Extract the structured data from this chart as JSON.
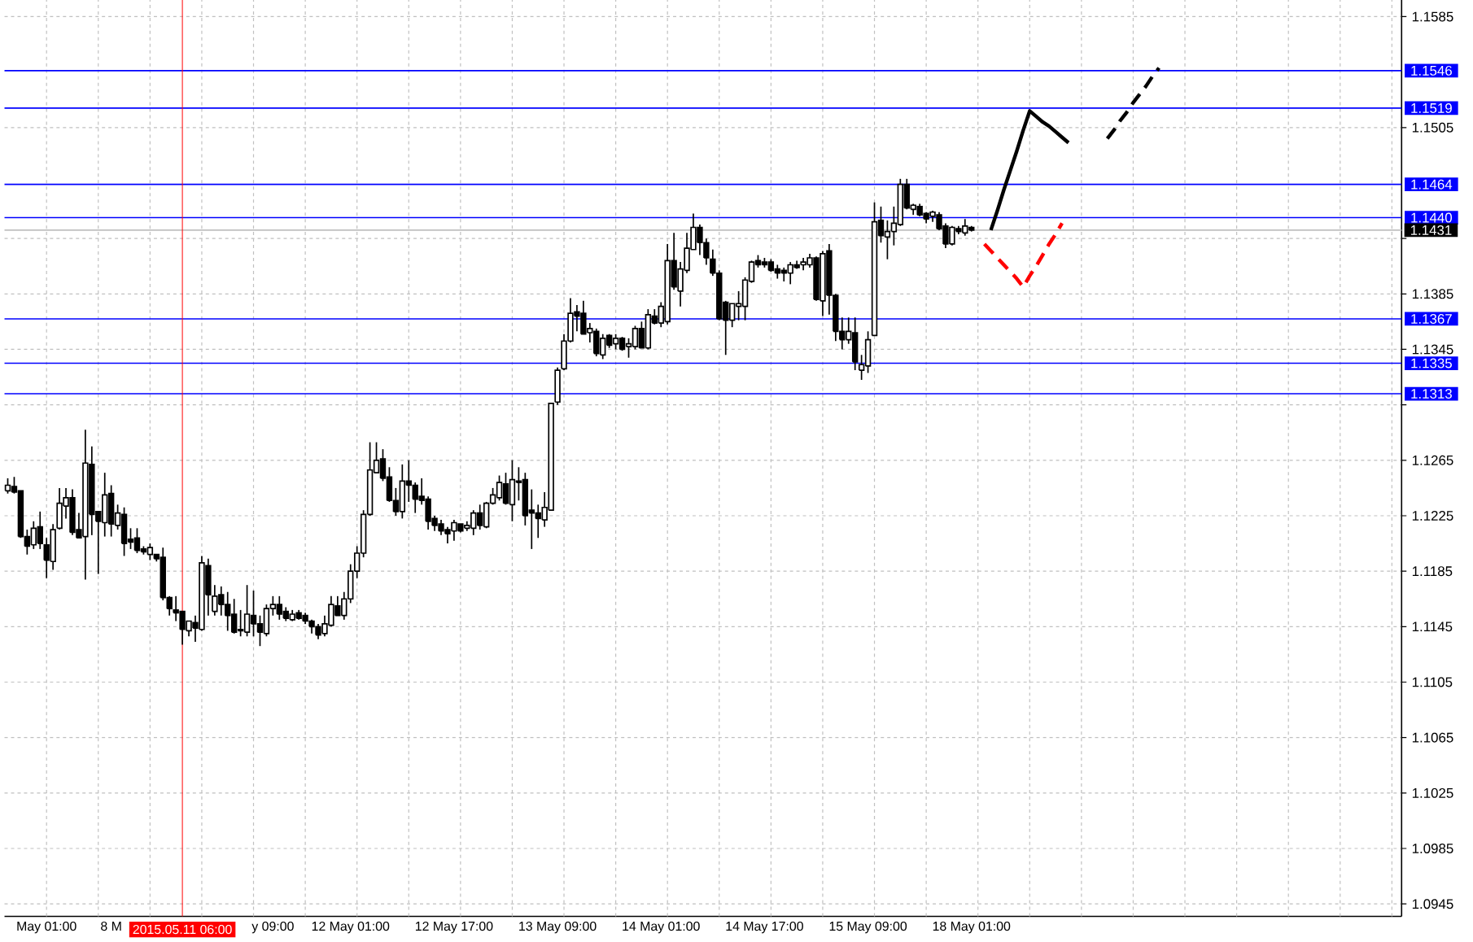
{
  "chart_data": {
    "type": "candlestick",
    "color": "#000000",
    "categories": [
      null,
      null,
      null,
      null,
      null,
      null,
      "May 01:00",
      null,
      null,
      null,
      null,
      null,
      null,
      null,
      null,
      null,
      "8 M",
      null,
      null,
      null,
      null,
      null,
      null,
      null,
      null,
      null,
      null,
      "2015.05.11 06:00",
      null,
      null,
      null,
      null,
      null,
      null,
      null,
      null,
      null,
      null,
      null,
      null,
      null,
      "y 09:00",
      null,
      null,
      null,
      null,
      null,
      null,
      null,
      null,
      null,
      null,
      null,
      "12 May 01:00",
      null,
      null,
      null,
      null,
      null,
      null,
      null,
      null,
      null,
      null,
      null,
      null,
      null,
      null,
      null,
      "12 May 17:00",
      null,
      null,
      null,
      null,
      null,
      null,
      null,
      null,
      null,
      null,
      null,
      null,
      null,
      null,
      null,
      "13 May 09:00",
      null,
      null,
      null,
      null,
      null,
      null,
      null,
      null,
      null,
      null,
      null,
      null,
      null,
      null,
      null,
      "14 May 01:00",
      null,
      null,
      null,
      null,
      null,
      null,
      null,
      null,
      null,
      null,
      null,
      null,
      null,
      null,
      null,
      "14 May 17:00",
      null,
      null,
      null,
      null,
      null,
      null,
      null,
      null,
      null,
      null,
      null,
      null,
      null,
      null,
      null,
      "15 May 09:00",
      null,
      null,
      null,
      null,
      null,
      null,
      null,
      null,
      null,
      null,
      null,
      null,
      null,
      null,
      null,
      "18 May 01:00",
      null,
      null,
      null,
      null,
      null,
      null,
      null,
      null,
      null,
      null,
      null,
      null,
      null,
      null,
      null,
      null,
      null,
      null,
      null,
      null,
      null,
      null,
      null,
      null,
      null,
      null,
      null,
      null,
      null,
      null,
      null,
      null,
      null,
      null,
      null,
      null,
      null,
      null,
      null,
      null,
      null,
      null,
      null,
      null,
      null,
      null,
      null,
      null,
      null,
      null,
      null,
      null,
      null,
      null,
      null,
      null,
      null,
      null,
      null,
      null,
      null,
      null,
      null,
      null,
      null,
      null
    ],
    "ohlc": [
      [
        1.1243,
        1.1252,
        1.1241,
        1.1247
      ],
      [
        1.1246,
        1.1253,
        1.1241,
        1.1242
      ],
      [
        1.1243,
        1.1243,
        1.1209,
        1.121
      ],
      [
        1.121,
        1.1215,
        1.1197,
        1.1203
      ],
      [
        1.1204,
        1.1221,
        1.1201,
        1.1216
      ],
      [
        1.1217,
        1.1228,
        1.1201,
        1.1205
      ],
      [
        1.1204,
        1.1209,
        1.118,
        1.1193
      ],
      [
        1.1192,
        1.1219,
        1.1186,
        1.1215
      ],
      [
        1.1216,
        1.1245,
        1.1215,
        1.1234
      ],
      [
        1.1232,
        1.1245,
        1.1223,
        1.1238
      ],
      [
        1.1238,
        1.1244,
        1.1211,
        1.1213
      ],
      [
        1.1215,
        1.1227,
        1.1209,
        1.1209
      ],
      [
        1.121,
        1.1287,
        1.1179,
        1.1263
      ],
      [
        1.1262,
        1.1275,
        1.1211,
        1.1226
      ],
      [
        1.1228,
        1.1228,
        1.1183,
        1.1221
      ],
      [
        1.122,
        1.1256,
        1.121,
        1.124
      ],
      [
        1.1241,
        1.1247,
        1.121,
        1.1219
      ],
      [
        1.1218,
        1.1233,
        1.1215,
        1.1227
      ],
      [
        1.1226,
        1.1231,
        1.1196,
        1.1205
      ],
      [
        1.1208,
        1.1216,
        1.1201,
        1.1206
      ],
      [
        1.1209,
        1.1216,
        1.1198,
        1.12
      ],
      [
        1.1201,
        1.1203,
        1.1197,
        1.1199
      ],
      [
        1.1197,
        1.1205,
        1.1193,
        1.1202
      ],
      [
        1.1197,
        1.1197,
        1.1192,
        1.1194
      ],
      [
        1.1195,
        1.1202,
        1.1164,
        1.1166
      ],
      [
        1.1166,
        1.1167,
        1.1153,
        1.1158
      ],
      [
        1.1157,
        1.1167,
        1.1149,
        1.1155
      ],
      [
        1.1156,
        1.1156,
        1.1132,
        1.1143
      ],
      [
        1.1142,
        1.1149,
        1.1138,
        1.1149
      ],
      [
        1.1148,
        1.1153,
        1.1134,
        1.1144
      ],
      [
        1.1143,
        1.1196,
        1.1142,
        1.1191
      ],
      [
        1.1189,
        1.1194,
        1.1153,
        1.1168
      ],
      [
        1.1156,
        1.1175,
        1.1153,
        1.1167
      ],
      [
        1.1168,
        1.1174,
        1.1153,
        1.1161
      ],
      [
        1.1161,
        1.117,
        1.1142,
        1.1153
      ],
      [
        1.1154,
        1.1165,
        1.114,
        1.1141
      ],
      [
        1.1143,
        1.1157,
        1.1138,
        1.1142
      ],
      [
        1.1141,
        1.1175,
        1.1138,
        1.1154
      ],
      [
        1.1153,
        1.1171,
        1.1138,
        1.1147
      ],
      [
        1.1147,
        1.1153,
        1.1131,
        1.1141
      ],
      [
        1.114,
        1.1161,
        1.1138,
        1.1158
      ],
      [
        1.1158,
        1.1167,
        1.1153,
        1.1161
      ],
      [
        1.1161,
        1.1167,
        1.115,
        1.1154
      ],
      [
        1.1156,
        1.1159,
        1.1149,
        1.1151
      ],
      [
        1.115,
        1.1157,
        1.1149,
        1.1154
      ],
      [
        1.1155,
        1.1157,
        1.115,
        1.1151
      ],
      [
        1.1153,
        1.1155,
        1.1147,
        1.1149
      ],
      [
        1.1149,
        1.115,
        1.114,
        1.1145
      ],
      [
        1.1145,
        1.1147,
        1.1136,
        1.1139
      ],
      [
        1.114,
        1.1153,
        1.1138,
        1.1147
      ],
      [
        1.1146,
        1.1167,
        1.1145,
        1.1161
      ],
      [
        1.116,
        1.1167,
        1.1153,
        1.1153
      ],
      [
        1.1153,
        1.117,
        1.115,
        1.1165
      ],
      [
        1.1165,
        1.119,
        1.1162,
        1.1185
      ],
      [
        1.1185,
        1.1203,
        1.118,
        1.1198
      ],
      [
        1.1198,
        1.1229,
        1.1195,
        1.1226
      ],
      [
        1.1226,
        1.1278,
        1.1225,
        1.1258
      ],
      [
        1.1256,
        1.1278,
        1.1256,
        1.1265
      ],
      [
        1.1266,
        1.1273,
        1.125,
        1.1252
      ],
      [
        1.1253,
        1.126,
        1.1235,
        1.1236
      ],
      [
        1.1236,
        1.1245,
        1.1225,
        1.1228
      ],
      [
        1.1228,
        1.1262,
        1.1223,
        1.125
      ],
      [
        1.125,
        1.1265,
        1.1235,
        1.1247
      ],
      [
        1.1247,
        1.1249,
        1.1227,
        1.1237
      ],
      [
        1.1239,
        1.1252,
        1.1233,
        1.1236
      ],
      [
        1.1237,
        1.1239,
        1.1215,
        1.1221
      ],
      [
        1.1223,
        1.1225,
        1.1214,
        1.1218
      ],
      [
        1.1219,
        1.1222,
        1.1211,
        1.1214
      ],
      [
        1.1215,
        1.1217,
        1.1205,
        1.1212
      ],
      [
        1.1214,
        1.1222,
        1.1207,
        1.122
      ],
      [
        1.1219,
        1.1219,
        1.1213,
        1.1214
      ],
      [
        1.1216,
        1.1221,
        1.1214,
        1.1218
      ],
      [
        1.1216,
        1.1229,
        1.1211,
        1.1227
      ],
      [
        1.1227,
        1.1233,
        1.1215,
        1.1218
      ],
      [
        1.1217,
        1.1235,
        1.1216,
        1.1234
      ],
      [
        1.1234,
        1.1245,
        1.1233,
        1.124
      ],
      [
        1.1238,
        1.1254,
        1.1236,
        1.1249
      ],
      [
        1.1248,
        1.1256,
        1.1233,
        1.1234
      ],
      [
        1.1233,
        1.1265,
        1.1221,
        1.1251
      ],
      [
        1.1249,
        1.126,
        1.1236,
        1.125
      ],
      [
        1.1251,
        1.1256,
        1.1218,
        1.1225
      ],
      [
        1.1229,
        1.1244,
        1.1201,
        1.1227
      ],
      [
        1.1227,
        1.1233,
        1.1209,
        1.1223
      ],
      [
        1.1222,
        1.1242,
        1.1217,
        1.1231
      ],
      [
        1.1229,
        1.1306,
        1.1229,
        1.1306
      ],
      [
        1.1307,
        1.1332,
        1.1305,
        1.133
      ],
      [
        1.1331,
        1.1356,
        1.133,
        1.1351
      ],
      [
        1.1351,
        1.1382,
        1.135,
        1.1371
      ],
      [
        1.1372,
        1.1377,
        1.1358,
        1.1369
      ],
      [
        1.1371,
        1.138,
        1.1356,
        1.1356
      ],
      [
        1.1357,
        1.1364,
        1.135,
        1.136
      ],
      [
        1.1358,
        1.136,
        1.134,
        1.1342
      ],
      [
        1.1341,
        1.1356,
        1.1338,
        1.1353
      ],
      [
        1.1355,
        1.1356,
        1.1346,
        1.1348
      ],
      [
        1.1349,
        1.1356,
        1.1345,
        1.1353
      ],
      [
        1.1353,
        1.1354,
        1.1344,
        1.1345
      ],
      [
        1.1347,
        1.1353,
        1.1339,
        1.1349
      ],
      [
        1.1347,
        1.1362,
        1.1345,
        1.136
      ],
      [
        1.136,
        1.1365,
        1.1346,
        1.1346
      ],
      [
        1.1346,
        1.1374,
        1.1345,
        1.137
      ],
      [
        1.1369,
        1.1374,
        1.1363,
        1.1364
      ],
      [
        1.1364,
        1.1379,
        1.1361,
        1.1376
      ],
      [
        1.1365,
        1.1421,
        1.1363,
        1.1409
      ],
      [
        1.1409,
        1.1429,
        1.1388,
        1.139
      ],
      [
        1.1387,
        1.1408,
        1.1376,
        1.1403
      ],
      [
        1.1402,
        1.1429,
        1.14,
        1.1418
      ],
      [
        1.1417,
        1.1443,
        1.1417,
        1.1433
      ],
      [
        1.1433,
        1.1435,
        1.1413,
        1.1422
      ],
      [
        1.1422,
        1.1425,
        1.1406,
        1.1411
      ],
      [
        1.141,
        1.1417,
        1.1398,
        1.14
      ],
      [
        1.14,
        1.1402,
        1.1366,
        1.1367
      ],
      [
        1.1379,
        1.138,
        1.1341,
        1.1366
      ],
      [
        1.1366,
        1.1378,
        1.1361,
        1.1378
      ],
      [
        1.1376,
        1.1387,
        1.1366,
        1.1378
      ],
      [
        1.1376,
        1.1397,
        1.1366,
        1.1395
      ],
      [
        1.1394,
        1.1409,
        1.1393,
        1.1408
      ],
      [
        1.1409,
        1.1413,
        1.1404,
        1.1406
      ],
      [
        1.1408,
        1.1411,
        1.1404,
        1.1406
      ],
      [
        1.1408,
        1.141,
        1.1401,
        1.1402
      ],
      [
        1.1403,
        1.1406,
        1.1396,
        1.14
      ],
      [
        1.1402,
        1.1404,
        1.1394,
        1.14
      ],
      [
        1.14,
        1.1408,
        1.1392,
        1.1406
      ],
      [
        1.1406,
        1.1409,
        1.1403,
        1.1404
      ],
      [
        1.1406,
        1.1411,
        1.1402,
        1.1408
      ],
      [
        1.1406,
        1.1414,
        1.1404,
        1.1411
      ],
      [
        1.1411,
        1.1412,
        1.138,
        1.1381
      ],
      [
        1.138,
        1.1416,
        1.1369,
        1.1414
      ],
      [
        1.1416,
        1.1421,
        1.137,
        1.1384
      ],
      [
        1.1384,
        1.1385,
        1.1351,
        1.1358
      ],
      [
        1.1358,
        1.1368,
        1.1345,
        1.1352
      ],
      [
        1.1352,
        1.1368,
        1.1349,
        1.1358
      ],
      [
        1.1357,
        1.1368,
        1.133,
        1.1336
      ],
      [
        1.133,
        1.1341,
        1.1323,
        1.1334
      ],
      [
        1.1333,
        1.1358,
        1.1328,
        1.1352
      ],
      [
        1.1355,
        1.1451,
        1.1355,
        1.1437
      ],
      [
        1.1438,
        1.1448,
        1.1422,
        1.1427
      ],
      [
        1.1426,
        1.1438,
        1.141,
        1.143
      ],
      [
        1.143,
        1.1448,
        1.142,
        1.1436
      ],
      [
        1.1435,
        1.1468,
        1.1434,
        1.1464
      ],
      [
        1.1464,
        1.1468,
        1.1446,
        1.1447
      ],
      [
        1.1446,
        1.145,
        1.1442,
        1.1449
      ],
      [
        1.1448,
        1.145,
        1.1441,
        1.1442
      ],
      [
        1.1443,
        1.1444,
        1.1436,
        1.1439
      ],
      [
        1.1441,
        1.1445,
        1.1437,
        1.1444
      ],
      [
        1.1442,
        1.1444,
        1.1431,
        1.1432
      ],
      [
        1.1434,
        1.1436,
        1.1418,
        1.1421
      ],
      [
        1.1421,
        1.1434,
        1.142,
        1.1433
      ],
      [
        1.1432,
        1.1434,
        1.1428,
        1.143
      ],
      [
        1.1429,
        1.1439,
        1.1427,
        1.1434
      ],
      [
        1.1433,
        1.1434,
        1.143,
        1.1431
      ],
      null,
      null,
      null,
      null,
      null,
      null,
      null,
      null,
      null,
      null,
      null,
      null,
      null,
      null,
      null,
      null,
      null,
      null,
      null,
      null,
      null,
      null,
      null,
      null,
      null,
      null,
      null,
      null,
      null,
      null,
      null,
      null,
      null,
      null,
      null,
      null,
      null,
      null,
      null,
      null,
      null,
      null,
      null,
      null,
      null,
      null,
      null,
      null,
      null,
      null,
      null,
      null,
      null,
      null,
      null,
      null,
      null,
      null,
      null,
      null,
      null,
      null,
      null,
      null,
      null,
      null
    ],
    "ylim": [
      1.0936,
      1.1597
    ],
    "yticks": [
      1.0945,
      1.0985,
      1.1025,
      1.1065,
      1.1105,
      1.1145,
      1.1185,
      1.1225,
      1.1265,
      {
        "value": 1.1305,
        "label": null
      },
      1.1345,
      1.1385,
      {
        "value": 1.1425,
        "label": null
      },
      1.1505,
      1.1585
    ],
    "grid": true,
    "ref_lines": [
      {
        "axis": "y",
        "value": 1.1546,
        "label": "1.1546",
        "color": "#0000ff"
      },
      {
        "axis": "y",
        "value": 1.1519,
        "label": "1.1519",
        "color": "#0000ff"
      },
      {
        "axis": "y",
        "value": 1.1464,
        "label": "1.1464",
        "color": "#0000ff"
      },
      {
        "axis": "y",
        "value": 1.144,
        "label": "1.1440",
        "color": "#0000ff"
      },
      {
        "axis": "y",
        "value": 1.1431,
        "color": "#c0c0c0"
      },
      {
        "axis": "y",
        "value": 1.1367,
        "label": "1.1367",
        "color": "#0000ff"
      },
      {
        "axis": "y",
        "value": 1.1335,
        "label": "1.1335",
        "color": "#0000ff"
      },
      {
        "axis": "y",
        "value": 1.1313,
        "label": "1.1313",
        "color": "#0000ff"
      },
      {
        "axis": "x",
        "value": "2015.05.11 06:00",
        "color": "#ff0000"
      }
    ],
    "annotations": [
      "1.1431"
    ],
    "series": [
      {
        "type": "line",
        "color": "#000000",
        "line_style": "solid",
        "values": [
          null,
          null,
          null,
          null,
          null,
          null,
          null,
          null,
          null,
          null,
          null,
          null,
          null,
          null,
          null,
          null,
          null,
          null,
          null,
          null,
          null,
          null,
          null,
          null,
          null,
          null,
          null,
          null,
          null,
          null,
          null,
          null,
          null,
          null,
          null,
          null,
          null,
          null,
          null,
          null,
          null,
          null,
          null,
          null,
          null,
          null,
          null,
          null,
          null,
          null,
          null,
          null,
          null,
          null,
          null,
          null,
          null,
          null,
          null,
          null,
          null,
          null,
          null,
          null,
          null,
          null,
          null,
          null,
          null,
          null,
          null,
          null,
          null,
          null,
          null,
          null,
          null,
          null,
          null,
          null,
          null,
          null,
          null,
          null,
          null,
          null,
          null,
          null,
          null,
          null,
          null,
          null,
          null,
          null,
          null,
          null,
          null,
          null,
          null,
          null,
          null,
          null,
          null,
          null,
          null,
          null,
          null,
          null,
          null,
          null,
          null,
          null,
          null,
          null,
          null,
          null,
          null,
          null,
          null,
          null,
          null,
          null,
          null,
          null,
          null,
          null,
          null,
          null,
          null,
          null,
          null,
          null,
          null,
          null,
          null,
          null,
          null,
          null,
          null,
          null,
          null,
          null,
          null,
          null,
          null,
          null,
          null,
          null,
          null,
          null,
          null,
          null,
          1.1431,
          1.1445,
          1.146,
          1.1474,
          1.1488,
          1.1503,
          1.1517,
          1.1513,
          1.1509,
          1.1506,
          1.1502,
          1.1498,
          1.1494,
          null,
          null,
          null,
          null,
          null,
          null,
          null,
          null,
          null,
          null,
          null,
          null,
          null,
          null,
          null,
          null,
          null,
          null,
          null,
          null,
          null,
          null,
          null,
          null,
          null,
          null,
          null,
          null,
          null,
          null,
          null,
          null,
          null,
          null,
          null,
          null,
          null,
          null,
          null,
          null,
          null,
          null,
          null,
          null,
          null,
          null,
          null,
          null,
          null,
          null,
          null
        ]
      },
      {
        "type": "line",
        "color": "#000000",
        "line_style": "dashed",
        "values": [
          null,
          null,
          null,
          null,
          null,
          null,
          null,
          null,
          null,
          null,
          null,
          null,
          null,
          null,
          null,
          null,
          null,
          null,
          null,
          null,
          null,
          null,
          null,
          null,
          null,
          null,
          null,
          null,
          null,
          null,
          null,
          null,
          null,
          null,
          null,
          null,
          null,
          null,
          null,
          null,
          null,
          null,
          null,
          null,
          null,
          null,
          null,
          null,
          null,
          null,
          null,
          null,
          null,
          null,
          null,
          null,
          null,
          null,
          null,
          null,
          null,
          null,
          null,
          null,
          null,
          null,
          null,
          null,
          null,
          null,
          null,
          null,
          null,
          null,
          null,
          null,
          null,
          null,
          null,
          null,
          null,
          null,
          null,
          null,
          null,
          null,
          null,
          null,
          null,
          null,
          null,
          null,
          null,
          null,
          null,
          null,
          null,
          null,
          null,
          null,
          null,
          null,
          null,
          null,
          null,
          null,
          null,
          null,
          null,
          null,
          null,
          null,
          null,
          null,
          null,
          null,
          null,
          null,
          null,
          null,
          null,
          null,
          null,
          null,
          null,
          null,
          null,
          null,
          null,
          null,
          null,
          null,
          null,
          null,
          null,
          null,
          null,
          null,
          null,
          null,
          null,
          null,
          null,
          null,
          null,
          null,
          null,
          null,
          null,
          null,
          null,
          null,
          null,
          null,
          null,
          null,
          null,
          null,
          null,
          null,
          null,
          null,
          null,
          null,
          null,
          null,
          null,
          null,
          null,
          null,
          1.1497,
          1.1503,
          1.151,
          1.1516,
          1.1523,
          1.1529,
          1.1535,
          1.1542,
          1.1548,
          null,
          null,
          null,
          null,
          null,
          null,
          null,
          null,
          null,
          null,
          null,
          null,
          null,
          null,
          null,
          null,
          null,
          null,
          null,
          null,
          null,
          null,
          null,
          null,
          null,
          null,
          null,
          null,
          null,
          null,
          null,
          null,
          null,
          null,
          null,
          null,
          null
        ]
      },
      {
        "type": "line",
        "color": "#ff0000",
        "line_style": "dashed",
        "values": [
          null,
          null,
          null,
          null,
          null,
          null,
          null,
          null,
          null,
          null,
          null,
          null,
          null,
          null,
          null,
          null,
          null,
          null,
          null,
          null,
          null,
          null,
          null,
          null,
          null,
          null,
          null,
          null,
          null,
          null,
          null,
          null,
          null,
          null,
          null,
          null,
          null,
          null,
          null,
          null,
          null,
          null,
          null,
          null,
          null,
          null,
          null,
          null,
          null,
          null,
          null,
          null,
          null,
          null,
          null,
          null,
          null,
          null,
          null,
          null,
          null,
          null,
          null,
          null,
          null,
          null,
          null,
          null,
          null,
          null,
          null,
          null,
          null,
          null,
          null,
          null,
          null,
          null,
          null,
          null,
          null,
          null,
          null,
          null,
          null,
          null,
          null,
          null,
          null,
          null,
          null,
          null,
          null,
          null,
          null,
          null,
          null,
          null,
          null,
          null,
          null,
          null,
          null,
          null,
          null,
          null,
          null,
          null,
          null,
          null,
          null,
          null,
          null,
          null,
          null,
          null,
          null,
          null,
          null,
          null,
          null,
          null,
          null,
          null,
          null,
          null,
          null,
          null,
          null,
          null,
          null,
          null,
          null,
          null,
          null,
          null,
          null,
          null,
          null,
          null,
          null,
          null,
          null,
          null,
          null,
          null,
          null,
          null,
          null,
          null,
          null,
          1.1421,
          1.1416,
          1.1411,
          1.1406,
          1.1401,
          1.1396,
          1.139,
          1.1398,
          1.1405,
          1.1413,
          1.1421,
          1.1428,
          1.1436,
          null,
          null,
          null,
          null,
          null,
          null,
          null,
          null,
          null,
          null,
          null,
          null,
          null,
          null,
          null,
          null,
          null,
          null,
          null,
          null,
          null,
          null,
          null,
          null,
          null,
          null,
          null,
          null,
          null,
          null,
          null,
          null,
          null,
          null,
          null,
          null,
          null,
          null,
          null,
          null,
          null,
          null,
          null,
          null,
          null,
          null,
          null,
          null,
          null,
          null,
          null,
          null
        ]
      }
    ]
  }
}
